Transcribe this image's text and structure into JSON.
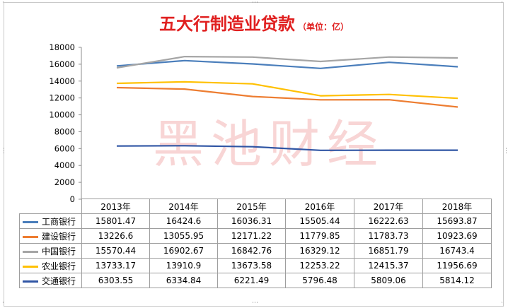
{
  "chart_data": {
    "type": "line",
    "title": "五大行制造业贷款",
    "subtitle": "（单位：亿）",
    "watermark": "黑池财经",
    "x": [
      "2013年",
      "2014年",
      "2015年",
      "2016年",
      "2017年",
      "2018年"
    ],
    "y_ticks": [
      "0",
      "2000",
      "4000",
      "6000",
      "8000",
      "10000",
      "12000",
      "14000",
      "16000",
      "18000"
    ],
    "ylim": [
      0,
      18000
    ],
    "grid": false,
    "legend": "data-table",
    "series": [
      {
        "name": "工商银行",
        "color": "#4a7ebb",
        "values": [
          15801.47,
          16424.6,
          16036.31,
          15505.44,
          16222.63,
          15693.87
        ],
        "labels": [
          "15801.47",
          "16424.6",
          "16036.31",
          "15505.44",
          "16222.63",
          "15693.87"
        ]
      },
      {
        "name": "建设银行",
        "color": "#ed7d31",
        "values": [
          13226.6,
          13055.95,
          12171.22,
          11779.85,
          11783.73,
          10923.69
        ],
        "labels": [
          "13226.6",
          "13055.95",
          "12171.22",
          "11779.85",
          "11783.73",
          "10923.69"
        ]
      },
      {
        "name": "中国银行",
        "color": "#a5a5a5",
        "values": [
          15570.44,
          16902.67,
          16842.76,
          16329.12,
          16851.79,
          16743.4
        ],
        "labels": [
          "15570.44",
          "16902.67",
          "16842.76",
          "16329.12",
          "16851.79",
          "16743.4"
        ]
      },
      {
        "name": "农业银行",
        "color": "#ffc000",
        "values": [
          13733.17,
          13910.9,
          13673.58,
          12253.22,
          12415.37,
          11956.69
        ],
        "labels": [
          "13733.17",
          "13910.9",
          "13673.58",
          "12253.22",
          "12415.37",
          "11956.69"
        ]
      },
      {
        "name": "交通银行",
        "color": "#2f55a4",
        "values": [
          6303.55,
          6334.84,
          6221.49,
          5796.48,
          5809.06,
          5814.12
        ],
        "labels": [
          "6303.55",
          "6334.84",
          "6221.49",
          "5796.48",
          "5809.06",
          "5814.12"
        ]
      }
    ]
  }
}
